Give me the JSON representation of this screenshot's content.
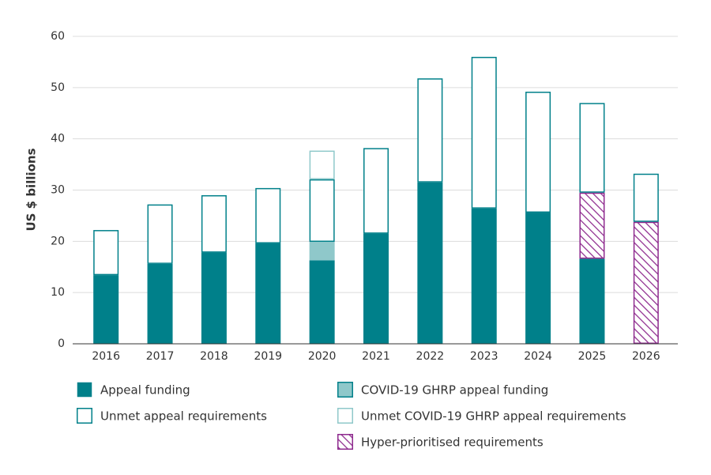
{
  "chart_data": {
    "type": "bar",
    "stacked": true,
    "y_label": "US $ billions",
    "categories": [
      "2016",
      "2017",
      "2018",
      "2019",
      "2020",
      "2021",
      "2022",
      "2023",
      "2024",
      "2025",
      "2026"
    ],
    "series": [
      {
        "name": "Appeal funding",
        "color": "#00808a",
        "style": "solid",
        "values": [
          13.4,
          15.6,
          17.8,
          19.6,
          16.3,
          21.5,
          31.5,
          26.4,
          25.6,
          16.6,
          null
        ]
      },
      {
        "name": "COVID-19 GHRP appeal funding",
        "color": "#8fc8ca",
        "style": "solid",
        "values": [
          null,
          null,
          null,
          null,
          3.6,
          null,
          null,
          null,
          null,
          null,
          null
        ]
      },
      {
        "name": "Hyper-prioritised requirements",
        "color": "#8e2a8e",
        "style": "hatch",
        "values": [
          null,
          null,
          null,
          null,
          null,
          null,
          null,
          null,
          null,
          12.9,
          23.8
        ]
      },
      {
        "name": "Unmet appeal requirements",
        "color": "#00808a",
        "style": "outline",
        "values": [
          8.8,
          11.6,
          11.2,
          10.8,
          12.2,
          16.7,
          20.3,
          29.6,
          23.6,
          17.5,
          9.4
        ]
      },
      {
        "name": "Unmet COVID-19 GHRP appeal requirements",
        "color": "#8fc8ca",
        "style": "outline",
        "values": [
          null,
          null,
          null,
          null,
          5.6,
          null,
          null,
          null,
          null,
          null,
          null
        ]
      }
    ],
    "ylim": [
      0,
      60
    ],
    "yticks": [
      0,
      10,
      20,
      30,
      40,
      50,
      60
    ],
    "grid": true
  }
}
